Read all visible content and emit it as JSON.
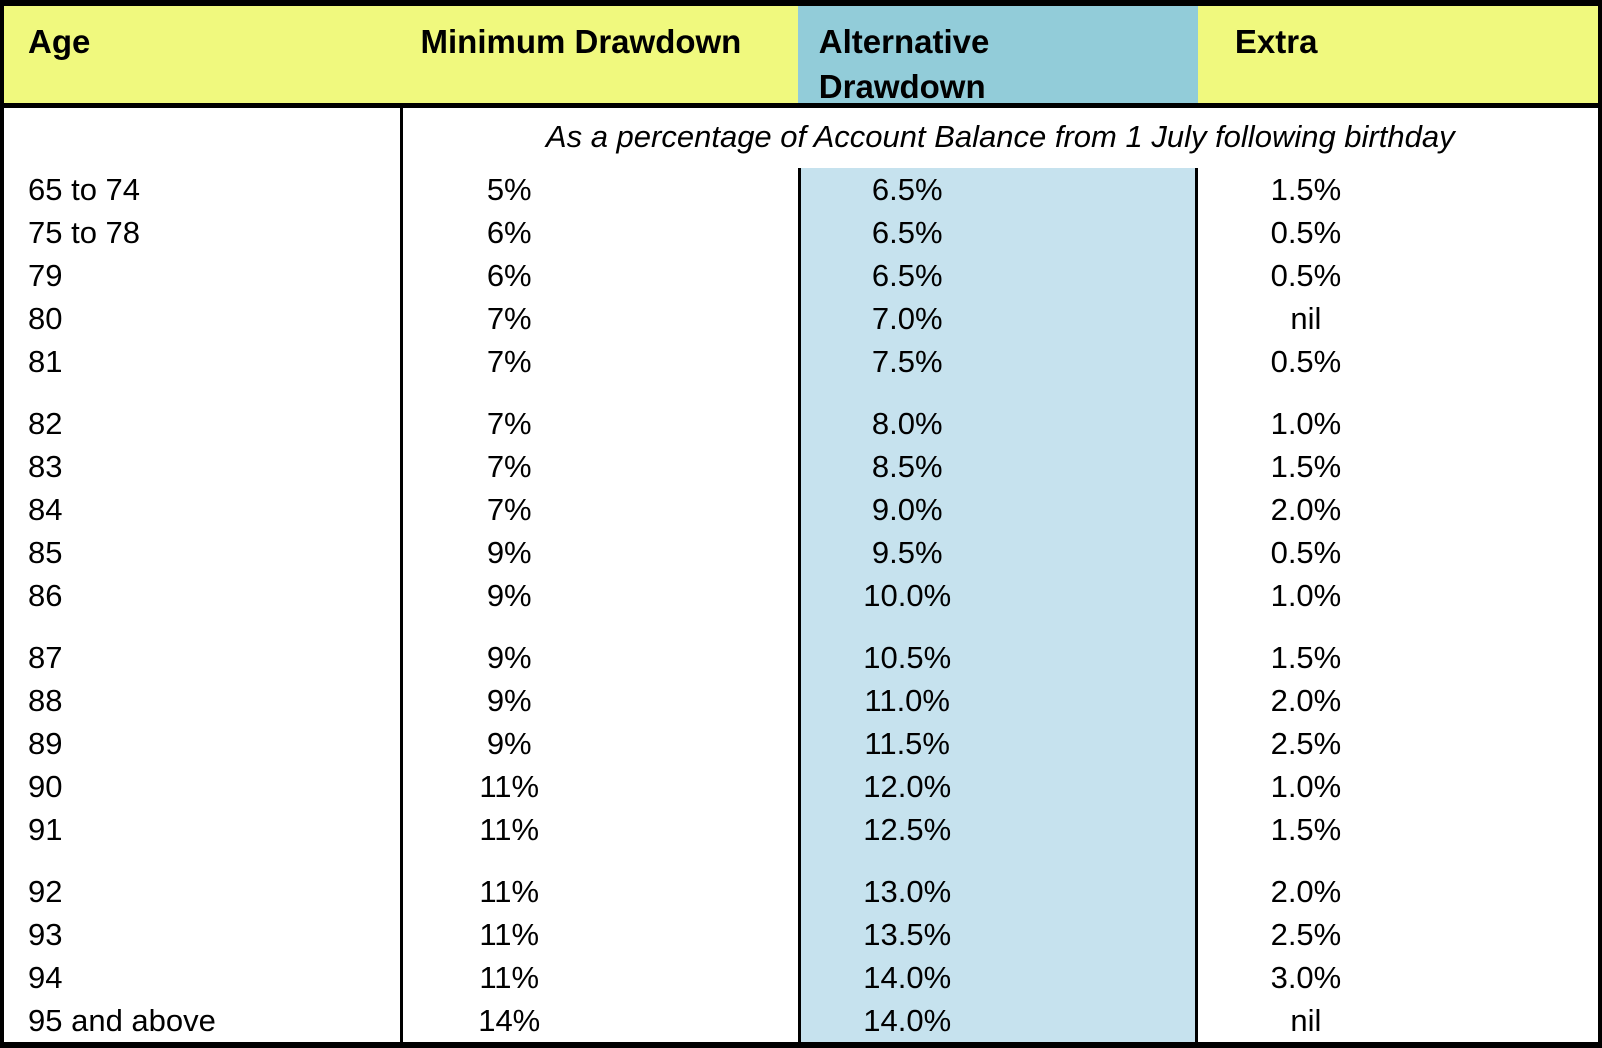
{
  "colors": {
    "header_yellow": "#f0f97e",
    "header_blue": "#92ccd9",
    "column_light_blue": "#c6e2ee",
    "border_black": "#000000",
    "text_black": "#000000",
    "background_white": "#ffffff"
  },
  "table": {
    "columns": [
      {
        "id": "age",
        "label": "Age"
      },
      {
        "id": "minimum_drawdown",
        "label": "Minimum Drawdown"
      },
      {
        "id": "alternative_drawdown",
        "label": "Alternative Drawdown"
      },
      {
        "id": "extra",
        "label": "Extra"
      }
    ],
    "subheader": "As a percentage of Account Balance from 1 July following birthday",
    "rows": [
      {
        "age": "65 to 74",
        "minimum": "5%",
        "alternative": "6.5%",
        "extra": "1.5%"
      },
      {
        "age": "75 to 78",
        "minimum": "6%",
        "alternative": "6.5%",
        "extra": "0.5%"
      },
      {
        "age": "79",
        "minimum": "6%",
        "alternative": "6.5%",
        "extra": "0.5%"
      },
      {
        "age": "80",
        "minimum": "7%",
        "alternative": "7.0%",
        "extra": "nil"
      },
      {
        "age": "81",
        "minimum": "7%",
        "alternative": "7.5%",
        "extra": "0.5%"
      },
      {
        "age": "82",
        "minimum": "7%",
        "alternative": "8.0%",
        "extra": "1.0%"
      },
      {
        "age": "83",
        "minimum": "7%",
        "alternative": "8.5%",
        "extra": "1.5%"
      },
      {
        "age": "84",
        "minimum": "7%",
        "alternative": "9.0%",
        "extra": "2.0%"
      },
      {
        "age": "85",
        "minimum": "9%",
        "alternative": "9.5%",
        "extra": "0.5%"
      },
      {
        "age": "86",
        "minimum": "9%",
        "alternative": "10.0%",
        "extra": "1.0%"
      },
      {
        "age": "87",
        "minimum": "9%",
        "alternative": "10.5%",
        "extra": "1.5%"
      },
      {
        "age": "88",
        "minimum": "9%",
        "alternative": "11.0%",
        "extra": "2.0%"
      },
      {
        "age": "89",
        "minimum": "9%",
        "alternative": "11.5%",
        "extra": "2.5%"
      },
      {
        "age": "90",
        "minimum": "11%",
        "alternative": "12.0%",
        "extra": "1.0%"
      },
      {
        "age": "91",
        "minimum": "11%",
        "alternative": "12.5%",
        "extra": "1.5%"
      },
      {
        "age": "92",
        "minimum": "11%",
        "alternative": "13.0%",
        "extra": "2.0%"
      },
      {
        "age": "93",
        "minimum": "11%",
        "alternative": "13.5%",
        "extra": "2.5%"
      },
      {
        "age": "94",
        "minimum": "11%",
        "alternative": "14.0%",
        "extra": "3.0%"
      },
      {
        "age": "95 and above",
        "minimum": "14%",
        "alternative": "14.0%",
        "extra": "nil"
      }
    ]
  },
  "chart_data": {
    "type": "table",
    "title": "",
    "columns": [
      "Age",
      "Minimum Drawdown",
      "Alternative Drawdown",
      "Extra"
    ],
    "note": "As a percentage of Account Balance from 1 July following birthday",
    "rows": [
      [
        "65 to 74",
        "5%",
        "6.5%",
        "1.5%"
      ],
      [
        "75 to 78",
        "6%",
        "6.5%",
        "0.5%"
      ],
      [
        "79",
        "6%",
        "6.5%",
        "0.5%"
      ],
      [
        "80",
        "7%",
        "7.0%",
        "nil"
      ],
      [
        "81",
        "7%",
        "7.5%",
        "0.5%"
      ],
      [
        "82",
        "7%",
        "8.0%",
        "1.0%"
      ],
      [
        "83",
        "7%",
        "8.5%",
        "1.5%"
      ],
      [
        "84",
        "7%",
        "9.0%",
        "2.0%"
      ],
      [
        "85",
        "9%",
        "9.5%",
        "0.5%"
      ],
      [
        "86",
        "9%",
        "10.0%",
        "1.0%"
      ],
      [
        "87",
        "9%",
        "10.5%",
        "1.5%"
      ],
      [
        "88",
        "9%",
        "11.0%",
        "2.0%"
      ],
      [
        "89",
        "9%",
        "11.5%",
        "2.5%"
      ],
      [
        "90",
        "11%",
        "12.0%",
        "1.0%"
      ],
      [
        "91",
        "11%",
        "12.5%",
        "1.5%"
      ],
      [
        "92",
        "11%",
        "13.0%",
        "2.0%"
      ],
      [
        "93",
        "11%",
        "13.5%",
        "2.5%"
      ],
      [
        "94",
        "11%",
        "14.0%",
        "3.0%"
      ],
      [
        "95 and above",
        "14%",
        "14.0%",
        "nil"
      ]
    ]
  }
}
